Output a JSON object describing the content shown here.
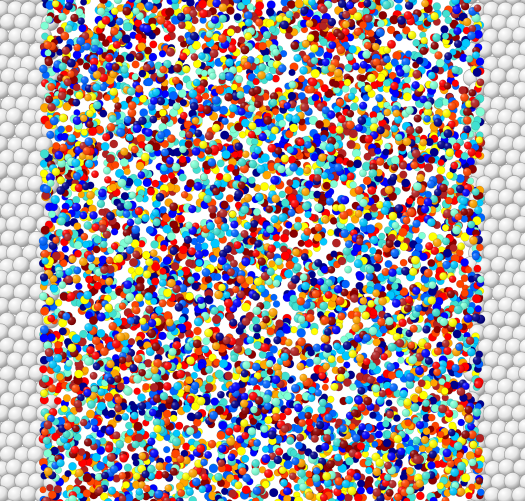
{
  "scene": {
    "description_visible_text": "",
    "colors": {
      "background": "#ffffff",
      "wall_particle": "#d9d9d9",
      "wall_particle_edge": "#9a9a9a",
      "palette": [
        "#00008b",
        "#0000ff",
        "#0064ff",
        "#00c8ff",
        "#40e0d0",
        "#7fffd4",
        "#ffff00",
        "#ffa500",
        "#ff4500",
        "#ff0000",
        "#b22222",
        "#8b0000"
      ]
    },
    "regions": {
      "left_wall": "white-particles",
      "center": "colored-particles",
      "right_wall": "white-particles"
    }
  }
}
